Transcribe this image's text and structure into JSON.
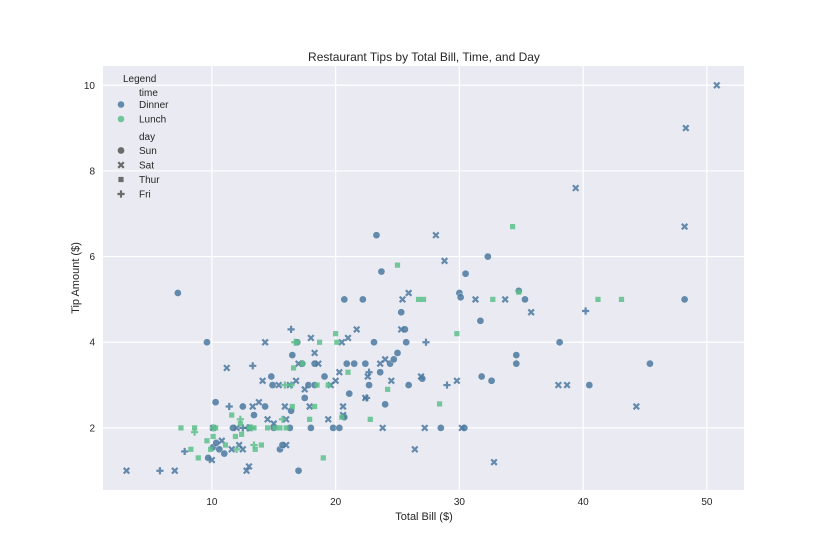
{
  "chart_data": {
    "type": "scatter",
    "title": "Restaurant Tips by Total Bill, Time, and Day",
    "xlabel": "Total Bill ($)",
    "ylabel": "Tip Amount ($)",
    "xlim": [
      1.2,
      53.0
    ],
    "ylim": [
      0.55,
      10.45
    ],
    "xticks": [
      10,
      20,
      30,
      40,
      50
    ],
    "yticks": [
      2,
      4,
      6,
      8,
      10
    ],
    "grid": true,
    "background": "#eaeaf2",
    "legend": {
      "title": "Legend",
      "position": "upper left",
      "hue_title": "time",
      "hue_entries": [
        {
          "label": "Dinner",
          "color": "#4c7aa0"
        },
        {
          "label": "Lunch",
          "color": "#5cc08b"
        }
      ],
      "style_title": "day",
      "style_entries": [
        {
          "label": "Sun",
          "marker": "circle"
        },
        {
          "label": "Sat",
          "marker": "x"
        },
        {
          "label": "Thur",
          "marker": "square"
        },
        {
          "label": "Fri",
          "marker": "plus"
        }
      ]
    },
    "series": [
      {
        "name": "Dinner-Sun",
        "time": "Dinner",
        "day": "Sun",
        "marker": "circle",
        "color": "#4c7aa0",
        "points": [
          [
            7.25,
            5.15
          ],
          [
            9.6,
            4.0
          ],
          [
            10.3,
            2.6
          ],
          [
            9.7,
            1.3
          ],
          [
            10.1,
            1.55
          ],
          [
            10.35,
            1.65
          ],
          [
            10.6,
            1.5
          ],
          [
            11.0,
            1.4
          ],
          [
            12.5,
            2.5
          ],
          [
            13.0,
            2.0
          ],
          [
            14.3,
            2.5
          ],
          [
            14.8,
            3.2
          ],
          [
            14.9,
            3.0
          ],
          [
            15.0,
            2.0
          ],
          [
            15.5,
            1.5
          ],
          [
            15.7,
            1.6
          ],
          [
            16.3,
            2.0
          ],
          [
            16.5,
            3.7
          ],
          [
            16.9,
            4.0
          ],
          [
            17.0,
            1.0
          ],
          [
            17.3,
            3.5
          ],
          [
            17.5,
            2.7
          ],
          [
            17.8,
            3.0
          ],
          [
            18.0,
            2.0
          ],
          [
            18.3,
            3.0
          ],
          [
            18.3,
            3.5
          ],
          [
            19.8,
            2.0
          ],
          [
            20.3,
            2.0
          ],
          [
            20.7,
            2.25
          ],
          [
            20.7,
            5.0
          ],
          [
            20.9,
            3.5
          ],
          [
            21.5,
            3.5
          ],
          [
            22.2,
            5.0
          ],
          [
            22.4,
            3.5
          ],
          [
            23.1,
            4.0
          ],
          [
            23.3,
            6.5
          ],
          [
            23.6,
            3.3
          ],
          [
            23.7,
            5.65
          ],
          [
            24.0,
            2.55
          ],
          [
            24.4,
            3.5
          ],
          [
            24.7,
            3.6
          ],
          [
            25.0,
            3.75
          ],
          [
            25.3,
            4.7
          ],
          [
            25.6,
            4.3
          ],
          [
            25.7,
            4.0
          ],
          [
            25.9,
            3.0
          ],
          [
            27.0,
            3.15
          ],
          [
            28.5,
            2.0
          ],
          [
            30.0,
            5.15
          ],
          [
            30.1,
            5.05
          ],
          [
            30.4,
            2.0
          ],
          [
            30.5,
            5.6
          ],
          [
            31.7,
            4.5
          ],
          [
            32.3,
            6.0
          ],
          [
            32.6,
            3.1
          ],
          [
            31.8,
            3.2
          ],
          [
            34.6,
            3.5
          ],
          [
            34.6,
            3.7
          ],
          [
            34.8,
            5.2
          ],
          [
            35.3,
            5.0
          ],
          [
            38.1,
            4.0
          ],
          [
            40.5,
            3.0
          ],
          [
            45.4,
            3.5
          ],
          [
            48.2,
            5.0
          ],
          [
            16.4,
            2.4
          ],
          [
            19.1,
            3.2
          ],
          [
            21.1,
            2.8
          ],
          [
            22.7,
            3.0
          ],
          [
            13.4,
            2.3
          ],
          [
            11.7,
            2.0
          ]
        ]
      },
      {
        "name": "Dinner-Sat",
        "time": "Dinner",
        "day": "Sat",
        "marker": "x",
        "color": "#4c7aa0",
        "points": [
          [
            3.1,
            1.0
          ],
          [
            7.0,
            1.0
          ],
          [
            10.0,
            1.25
          ],
          [
            10.1,
            2.0
          ],
          [
            10.8,
            1.7
          ],
          [
            11.2,
            3.4
          ],
          [
            11.6,
            1.5
          ],
          [
            12.2,
            1.6
          ],
          [
            12.5,
            1.5
          ],
          [
            12.8,
            1.0
          ],
          [
            13.0,
            1.1
          ],
          [
            13.3,
            2.5
          ],
          [
            13.8,
            2.6
          ],
          [
            14.1,
            3.1
          ],
          [
            14.3,
            4.0
          ],
          [
            14.5,
            2.2
          ],
          [
            15.0,
            2.1
          ],
          [
            15.4,
            3.0
          ],
          [
            16.0,
            2.2
          ],
          [
            16.3,
            3.0
          ],
          [
            16.8,
            3.1
          ],
          [
            17.0,
            3.5
          ],
          [
            17.5,
            2.9
          ],
          [
            17.9,
            2.5
          ],
          [
            18.0,
            4.1
          ],
          [
            18.3,
            3.75
          ],
          [
            18.6,
            3.5
          ],
          [
            19.4,
            2.2
          ],
          [
            19.6,
            3.0
          ],
          [
            20.0,
            3.1
          ],
          [
            20.3,
            3.3
          ],
          [
            20.5,
            4.0
          ],
          [
            20.6,
            2.5
          ],
          [
            20.6,
            2.3
          ],
          [
            21.0,
            4.1
          ],
          [
            21.7,
            4.3
          ],
          [
            22.4,
            2.7
          ],
          [
            22.6,
            3.2
          ],
          [
            23.6,
            3.5
          ],
          [
            23.8,
            2.0
          ],
          [
            24.0,
            3.6
          ],
          [
            24.5,
            3.1
          ],
          [
            25.3,
            4.3
          ],
          [
            25.4,
            5.0
          ],
          [
            25.9,
            5.15
          ],
          [
            26.4,
            1.5
          ],
          [
            26.9,
            3.2
          ],
          [
            27.2,
            2.0
          ],
          [
            28.1,
            6.5
          ],
          [
            28.8,
            5.9
          ],
          [
            29.8,
            3.1
          ],
          [
            30.2,
            2.0
          ],
          [
            31.3,
            5.0
          ],
          [
            32.8,
            1.2
          ],
          [
            33.7,
            5.0
          ],
          [
            35.8,
            4.7
          ],
          [
            38.0,
            3.0
          ],
          [
            38.7,
            3.0
          ],
          [
            39.4,
            7.6
          ],
          [
            44.3,
            2.5
          ],
          [
            48.3,
            9.0
          ],
          [
            48.2,
            6.7
          ],
          [
            50.8,
            10.0
          ],
          [
            16.0,
            1.6
          ],
          [
            12.0,
            2.0
          ],
          [
            15.9,
            2.5
          ]
        ]
      },
      {
        "name": "Dinner-Fri",
        "time": "Dinner",
        "day": "Fri",
        "marker": "plus",
        "color": "#4c7aa0",
        "points": [
          [
            5.8,
            1.0
          ],
          [
            7.8,
            1.45
          ],
          [
            11.4,
            2.5
          ],
          [
            13.3,
            3.45
          ],
          [
            16.4,
            4.3
          ],
          [
            12.5,
            2.0
          ],
          [
            12.9,
            2.0
          ],
          [
            27.3,
            4.0
          ],
          [
            29.0,
            3.0
          ],
          [
            40.2,
            4.73
          ],
          [
            22.5,
            2.7
          ],
          [
            22.7,
            3.3
          ]
        ]
      },
      {
        "name": "Lunch-Thur",
        "time": "Lunch",
        "day": "Thur",
        "marker": "square",
        "color": "#5cc08b",
        "points": [
          [
            7.5,
            2.0
          ],
          [
            8.3,
            1.5
          ],
          [
            8.6,
            2.0
          ],
          [
            8.9,
            1.3
          ],
          [
            9.6,
            1.7
          ],
          [
            9.9,
            1.5
          ],
          [
            10.3,
            2.0
          ],
          [
            10.1,
            1.8
          ],
          [
            11.1,
            1.6
          ],
          [
            11.6,
            2.3
          ],
          [
            11.9,
            1.8
          ],
          [
            12.3,
            2.1
          ],
          [
            12.4,
            1.85
          ],
          [
            13.0,
            2.0
          ],
          [
            13.4,
            2.0
          ],
          [
            14.0,
            1.6
          ],
          [
            14.5,
            2.0
          ],
          [
            15.1,
            2.0
          ],
          [
            15.5,
            2.0
          ],
          [
            16.0,
            2.0
          ],
          [
            16.5,
            2.5
          ],
          [
            16.9,
            4.0
          ],
          [
            17.3,
            3.5
          ],
          [
            18.3,
            2.5
          ],
          [
            18.7,
            4.0
          ],
          [
            19.0,
            1.3
          ],
          [
            19.4,
            3.0
          ],
          [
            20.0,
            4.2
          ],
          [
            20.1,
            4.0
          ],
          [
            20.5,
            2.25
          ],
          [
            21.0,
            3.3
          ],
          [
            22.8,
            2.2
          ],
          [
            24.2,
            2.9
          ],
          [
            25.0,
            5.8
          ],
          [
            26.7,
            5.0
          ],
          [
            27.1,
            5.0
          ],
          [
            28.4,
            2.56
          ],
          [
            29.8,
            4.2
          ],
          [
            32.7,
            5.0
          ],
          [
            34.3,
            6.7
          ],
          [
            34.8,
            5.17
          ],
          [
            41.2,
            5.0
          ],
          [
            43.1,
            5.0
          ],
          [
            18.5,
            3.0
          ],
          [
            17.9,
            2.2
          ],
          [
            16.6,
            3.4
          ],
          [
            13.5,
            1.5
          ]
        ]
      },
      {
        "name": "Lunch-Fri",
        "time": "Lunch",
        "day": "Fri",
        "marker": "plus",
        "color": "#5cc08b",
        "points": [
          [
            8.6,
            1.9
          ],
          [
            10.1,
            2.0
          ],
          [
            12.0,
            1.5
          ],
          [
            12.3,
            2.2
          ],
          [
            13.2,
            2.0
          ],
          [
            13.4,
            1.6
          ],
          [
            15.7,
            2.2
          ],
          [
            16.4,
            3.0
          ],
          [
            16.7,
            4.0
          ],
          [
            15.9,
            3.0
          ]
        ]
      }
    ]
  }
}
